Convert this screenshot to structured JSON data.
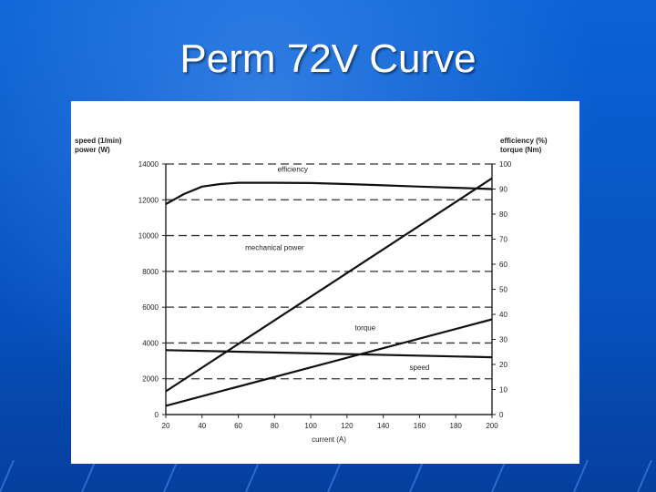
{
  "slide": {
    "title": "Perm 72V Curve"
  },
  "chart_data": {
    "type": "line",
    "title": "",
    "xlabel": "current (A)",
    "ylabel_left": [
      "speed (1/min)",
      "power (W)"
    ],
    "ylabel_right": [
      "efficiency (%)",
      "torque (Nm)"
    ],
    "x_ticks": [
      20,
      40,
      60,
      80,
      100,
      120,
      140,
      160,
      180,
      200
    ],
    "y_left_ticks": [
      0,
      2000,
      4000,
      6000,
      8000,
      10000,
      12000,
      14000
    ],
    "y_right_ticks": [
      0,
      10,
      20,
      30,
      40,
      50,
      60,
      70,
      80,
      90,
      100
    ],
    "xlim": [
      20,
      200
    ],
    "ylim_left": [
      0,
      14000
    ],
    "ylim_right": [
      0,
      100
    ],
    "grid": "dashed horizontal",
    "series": [
      {
        "name": "efficiency",
        "axis": "right",
        "x": [
          20,
          30,
          40,
          50,
          60,
          80,
          100,
          120,
          140,
          160,
          180,
          200
        ],
        "values": [
          84,
          88,
          91,
          92,
          92.5,
          92.5,
          92.4,
          92,
          91.5,
          91,
          90.5,
          90
        ]
      },
      {
        "name": "mechanical power",
        "axis": "left",
        "x": [
          20,
          200
        ],
        "values": [
          1300,
          13200
        ]
      },
      {
        "name": "torque",
        "axis": "right",
        "x": [
          20,
          200
        ],
        "values": [
          3.5,
          38
        ]
      },
      {
        "name": "speed",
        "axis": "left",
        "x": [
          20,
          200
        ],
        "values": [
          3600,
          3200
        ]
      }
    ],
    "annotations": [
      {
        "text": "efficiency",
        "x": 90,
        "y_right": 97
      },
      {
        "text": "mechanical power",
        "x": 80,
        "y_left": 9200
      },
      {
        "text": "torque",
        "x": 130,
        "y_left": 4700
      },
      {
        "text": "speed",
        "x": 160,
        "y_left": 2500
      }
    ]
  }
}
